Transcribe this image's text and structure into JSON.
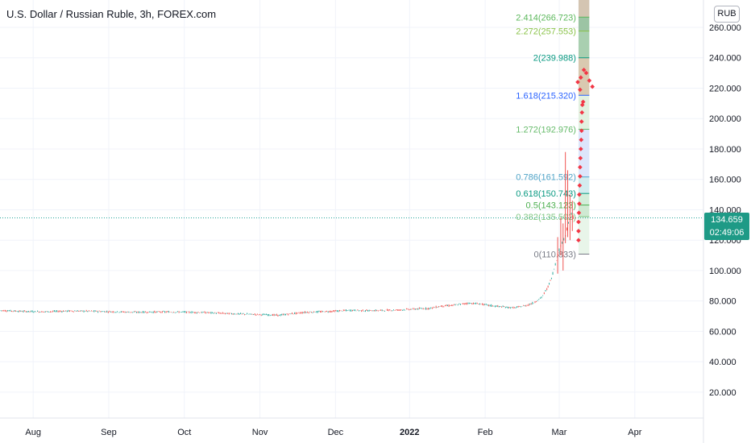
{
  "title": "U.S. Dollar / Russian Ruble, 3h, FOREX.com",
  "currency_badge": "RUB",
  "last_price": "134.659",
  "countdown": "02:49:06",
  "colors": {
    "up": "#26a69a",
    "down": "#ef5350",
    "grid": "#f0f3fa",
    "price_line": "#26a69a",
    "projection": "#f23645"
  },
  "chart_data": {
    "type": "candlestick",
    "title": "U.S. Dollar / Russian Ruble, 3h, FOREX.com",
    "y_ticks": [
      20,
      40,
      60,
      80,
      100,
      120,
      140,
      160,
      180,
      200,
      220,
      240,
      260
    ],
    "y_tick_labels": [
      "20.000",
      "40.000",
      "60.000",
      "80.000",
      "100.000",
      "120.000",
      "140.000",
      "160.000",
      "180.000",
      "200.000",
      "220.000",
      "240.000",
      "260.000"
    ],
    "ylim": [
      3,
      278
    ],
    "x_ticks": [
      {
        "label": "Aug",
        "t": 1.16,
        "bold": false
      },
      {
        "label": "Sep",
        "t": 2.14,
        "bold": false
      },
      {
        "label": "Oct",
        "t": 3.12,
        "bold": false
      },
      {
        "label": "Nov",
        "t": 4.1,
        "bold": false
      },
      {
        "label": "Dec",
        "t": 5.08,
        "bold": false
      },
      {
        "label": "2022",
        "t": 6.04,
        "bold": true
      },
      {
        "label": "Feb",
        "t": 7.02,
        "bold": false
      },
      {
        "label": "Mar",
        "t": 7.98,
        "bold": false
      },
      {
        "label": "Apr",
        "t": 8.96,
        "bold": false
      }
    ],
    "xlim": [
      0.73,
      9.85
    ],
    "price_series": [
      [
        0.73,
        73.8
      ],
      [
        1.0,
        73.2
      ],
      [
        1.3,
        72.9
      ],
      [
        1.6,
        73.4
      ],
      [
        1.9,
        73.3
      ],
      [
        2.2,
        72.9
      ],
      [
        2.5,
        72.6
      ],
      [
        2.8,
        72.8
      ],
      [
        3.1,
        72.7
      ],
      [
        3.4,
        72.4
      ],
      [
        3.6,
        71.9
      ],
      [
        3.8,
        71.5
      ],
      [
        4.0,
        71.2
      ],
      [
        4.2,
        70.9
      ],
      [
        4.35,
        70.6
      ],
      [
        4.5,
        71.6
      ],
      [
        4.7,
        72.6
      ],
      [
        4.9,
        72.9
      ],
      [
        5.1,
        73.4
      ],
      [
        5.3,
        73.9
      ],
      [
        5.5,
        73.6
      ],
      [
        5.7,
        73.8
      ],
      [
        5.9,
        74.1
      ],
      [
        6.1,
        74.7
      ],
      [
        6.3,
        75.2
      ],
      [
        6.45,
        76.6
      ],
      [
        6.6,
        77.1
      ],
      [
        6.8,
        78.6
      ],
      [
        6.95,
        78.1
      ],
      [
        7.1,
        76.9
      ],
      [
        7.25,
        76.1
      ],
      [
        7.4,
        75.5
      ],
      [
        7.55,
        77.0
      ],
      [
        7.65,
        78.8
      ],
      [
        7.75,
        82.3
      ],
      [
        7.82,
        87.8
      ],
      [
        7.88,
        95.1
      ],
      [
        7.93,
        104.2
      ],
      [
        7.98,
        113.5
      ],
      [
        8.02,
        118.7
      ],
      [
        8.06,
        123.4
      ],
      [
        8.1,
        131.4
      ],
      [
        8.14,
        137.5
      ],
      [
        8.18,
        133.1
      ],
      [
        8.2,
        134.7
      ]
    ],
    "spikes": [
      [
        8.03,
        100,
        131
      ],
      [
        8.06,
        118,
        178
      ],
      [
        8.09,
        122,
        166
      ],
      [
        8.12,
        120,
        150
      ],
      [
        8.15,
        126,
        146
      ],
      [
        7.96,
        98,
        122
      ],
      [
        8.0,
        110,
        135
      ]
    ],
    "fib_levels": [
      {
        "label": "2.414(266.723)",
        "value": 266.723,
        "color": "#5cb85c"
      },
      {
        "label": "2.272(257.553)",
        "value": 257.553,
        "color": "#8bc34a"
      },
      {
        "label": "2(239.988)",
        "value": 239.988,
        "color": "#089981"
      },
      {
        "label": "1.618(215.320)",
        "value": 215.32,
        "color": "#2962ff"
      },
      {
        "label": "1.272(192.976)",
        "value": 192.976,
        "color": "#66bb6a"
      },
      {
        "label": "0.786(161.592)",
        "value": 161.592,
        "color": "#4fa3c7"
      },
      {
        "label": "0.618(150.743)",
        "value": 150.743,
        "color": "#089981"
      },
      {
        "label": "0.5(143.123)",
        "value": 143.123,
        "color": "#4caf50"
      },
      {
        "label": "0.382(135.502)",
        "value": 135.502,
        "color": "#81c784"
      },
      {
        "label": "0(110.833)",
        "value": 110.833,
        "color": "#787b86"
      }
    ],
    "fib_bands": [
      {
        "from": 110.833,
        "to": 135.502,
        "color": "#e8f5e9"
      },
      {
        "from": 135.502,
        "to": 143.123,
        "color": "#cfe9d2"
      },
      {
        "from": 143.123,
        "to": 150.743,
        "color": "#d4edda"
      },
      {
        "from": 150.743,
        "to": 161.592,
        "color": "#d2ecef"
      },
      {
        "from": 161.592,
        "to": 192.976,
        "color": "#dde6fb"
      },
      {
        "from": 192.976,
        "to": 215.32,
        "color": "#e2f1e0"
      },
      {
        "from": 215.32,
        "to": 239.988,
        "color": "#d9c9b0"
      },
      {
        "from": 239.988,
        "to": 257.553,
        "color": "#a9cfb0"
      },
      {
        "from": 257.553,
        "to": 266.723,
        "color": "#9cc4a4"
      },
      {
        "from": 266.723,
        "to": 278,
        "color": "#d4c5b2"
      }
    ],
    "fib_t_range": [
      8.23,
      8.37
    ],
    "projection_points": [
      [
        8.23,
        120
      ],
      [
        8.23,
        126
      ],
      [
        8.23,
        132
      ],
      [
        8.235,
        138
      ],
      [
        8.24,
        144
      ],
      [
        8.24,
        150
      ],
      [
        8.245,
        156
      ],
      [
        8.25,
        162
      ],
      [
        8.25,
        168
      ],
      [
        8.255,
        174
      ],
      [
        8.26,
        180
      ],
      [
        8.265,
        186
      ],
      [
        8.27,
        192
      ],
      [
        8.27,
        198
      ],
      [
        8.275,
        204
      ],
      [
        8.28,
        209
      ],
      [
        8.29,
        211
      ],
      [
        8.22,
        224
      ],
      [
        8.26,
        227
      ],
      [
        8.3,
        232
      ],
      [
        8.33,
        230
      ],
      [
        8.37,
        225
      ],
      [
        8.41,
        221
      ],
      [
        8.25,
        219
      ]
    ]
  }
}
